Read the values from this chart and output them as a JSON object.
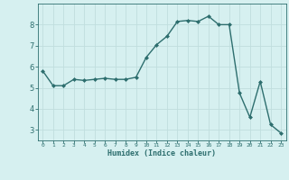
{
  "x": [
    0,
    1,
    2,
    3,
    4,
    5,
    6,
    7,
    8,
    9,
    10,
    11,
    12,
    13,
    14,
    15,
    16,
    17,
    18,
    19,
    20,
    21,
    22,
    23
  ],
  "y": [
    5.8,
    5.1,
    5.1,
    5.4,
    5.35,
    5.4,
    5.45,
    5.4,
    5.4,
    5.5,
    6.45,
    7.05,
    7.45,
    8.15,
    8.2,
    8.15,
    8.4,
    8.0,
    8.0,
    4.75,
    3.6,
    5.3,
    3.25,
    2.85
  ],
  "line_color": "#2d6e6e",
  "bg_color": "#d6f0f0",
  "grid_color": "#c0dede",
  "xlabel": "Humidex (Indice chaleur)",
  "ylim": [
    2.5,
    9.0
  ],
  "xlim": [
    -0.5,
    23.5
  ],
  "yticks": [
    3,
    4,
    5,
    6,
    7,
    8
  ],
  "xticks": [
    0,
    1,
    2,
    3,
    4,
    5,
    6,
    7,
    8,
    9,
    10,
    11,
    12,
    13,
    14,
    15,
    16,
    17,
    18,
    19,
    20,
    21,
    22,
    23
  ],
  "marker": "D",
  "markersize": 2.0,
  "linewidth": 1.0
}
